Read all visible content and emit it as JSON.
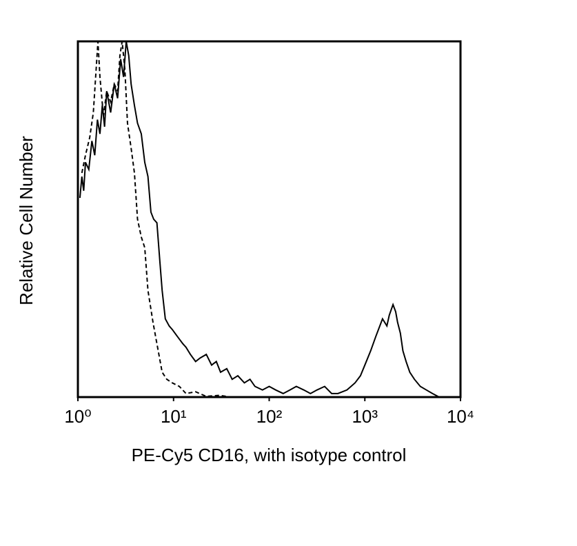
{
  "chart_data": {
    "type": "line",
    "xlabel": "PE-Cy5 CD16, with isotype control",
    "ylabel": "Relative Cell Number",
    "xscale": "log",
    "xlim": [
      1,
      10000
    ],
    "xticks": [
      {
        "value": 1,
        "label": "10⁰"
      },
      {
        "value": 10,
        "label": "10¹"
      },
      {
        "value": 100,
        "label": "10²"
      },
      {
        "value": 1000,
        "label": "10³"
      },
      {
        "value": 10000,
        "label": "10⁴"
      }
    ],
    "ylim": [
      0,
      100
    ],
    "grid": false,
    "series": [
      {
        "color": "#000000",
        "line_style": "solid",
        "x": [
          1.05,
          1.1,
          1.15,
          1.2,
          1.3,
          1.4,
          1.5,
          1.6,
          1.7,
          1.8,
          1.9,
          2.0,
          2.2,
          2.4,
          2.6,
          2.8,
          3.0,
          3.2,
          3.4,
          3.6,
          3.9,
          4.2,
          4.6,
          5.0,
          5.4,
          5.8,
          6.2,
          6.7,
          7.2,
          7.6,
          8.2,
          9.0,
          9.7,
          11,
          12.5,
          13.5,
          15,
          17,
          19,
          22,
          25,
          28,
          31,
          36,
          41,
          47,
          55,
          63,
          71,
          85,
          100,
          117,
          140,
          165,
          192,
          230,
          270,
          316,
          380,
          450,
          523,
          650,
          790,
          900,
          1000,
          1150,
          1300,
          1530,
          1700,
          1800,
          1970,
          2100,
          2200,
          2350,
          2500,
          2700,
          2950,
          3300,
          3800,
          4400,
          5100,
          6000
        ],
        "values": [
          56,
          62,
          58,
          66,
          64,
          72,
          68,
          78,
          74,
          82,
          76,
          86,
          80,
          88,
          84,
          95,
          90,
          100,
          96,
          88,
          82,
          77,
          74,
          66,
          62,
          52,
          50,
          49,
          38,
          30,
          22,
          20,
          19,
          17,
          15,
          14,
          12,
          10,
          11,
          12,
          9,
          10,
          7,
          8,
          5,
          6,
          4,
          5,
          3,
          2,
          3,
          2,
          1,
          2,
          3,
          2,
          1,
          2,
          3,
          1,
          1,
          2,
          4,
          6,
          9,
          13,
          17,
          22,
          20,
          23,
          26,
          24,
          21,
          18,
          13,
          10,
          7,
          5,
          3,
          2,
          1,
          0
        ]
      },
      {
        "color": "#000000",
        "line_style": "dashed",
        "x": [
          1.1,
          1.2,
          1.33,
          1.45,
          1.55,
          1.62,
          1.7,
          1.85,
          2.0,
          2.2,
          2.4,
          2.6,
          2.75,
          2.9,
          3.1,
          3.3,
          3.6,
          3.9,
          4.2,
          4.6,
          5.0,
          5.4,
          6.1,
          6.7,
          7.6,
          8.5,
          9.7,
          11.5,
          13.5,
          17,
          22,
          30,
          40,
          51,
          100,
          270
        ],
        "values": [
          63,
          68,
          73,
          80,
          92,
          100,
          90,
          79,
          86,
          83,
          88,
          86,
          96,
          100,
          92,
          77,
          70,
          63,
          50,
          45,
          42,
          30,
          21,
          15,
          7,
          5,
          4,
          3,
          1,
          1.5,
          0.2,
          0.5,
          0,
          0,
          0,
          0
        ]
      }
    ]
  }
}
